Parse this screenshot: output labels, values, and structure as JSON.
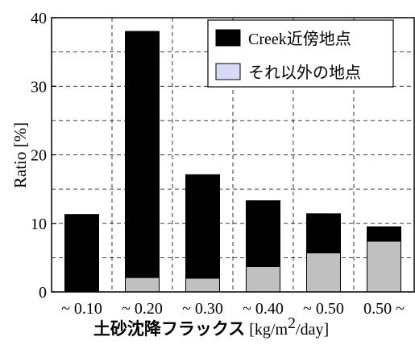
{
  "chart_data": {
    "type": "bar",
    "stacked": true,
    "categories": [
      "~ 0.10",
      "~ 0.20",
      "~ 0.30",
      "~ 0.40",
      "~ 0.50",
      "0.50 ~"
    ],
    "series": [
      {
        "name": "Creek近傍地点",
        "values": [
          11.3,
          35.9,
          15.1,
          9.6,
          5.7,
          2.1
        ],
        "color": "#000000"
      },
      {
        "name": "それ以外の地点",
        "values": [
          0.0,
          2.1,
          2.0,
          3.7,
          5.7,
          7.4
        ],
        "color": "#c0c0c0"
      }
    ],
    "legend_swatch_colors": [
      "#000000",
      "#d8d8f8"
    ],
    "xlabel_jp": "土砂沈降フラックス",
    "xlabel_unit_pre": " [kg/m",
    "xlabel_unit_sup": "2",
    "xlabel_unit_post": "/day]",
    "ylabel": "Ratio [%]",
    "ylim": [
      0,
      40
    ],
    "yticks": [
      "0",
      "10",
      "20",
      "30",
      "40"
    ],
    "grid": true,
    "legend_position": "top-right"
  }
}
